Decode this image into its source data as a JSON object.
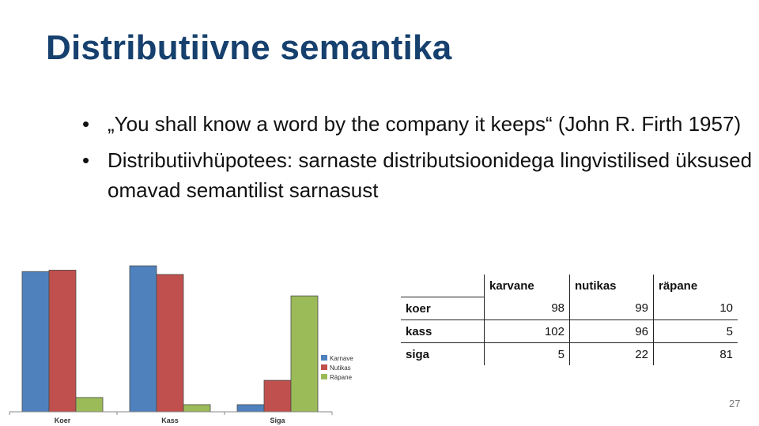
{
  "slide": {
    "title": "Distributiivne semantika",
    "bullets": [
      "„You shall know a word by the company it keeps“ (John R. Firth 1957)",
      "Distributiivhüpotees: sarnaste distributsioonidega lingvistilised üksused omavad semantilist sarnasust"
    ],
    "page_number": "27",
    "bullet_char": "•"
  },
  "table": {
    "headers": [
      "",
      "karvane",
      "nutikas",
      "räpane"
    ],
    "rows": [
      {
        "label": "koer",
        "values": [
          "98",
          "99",
          "10"
        ]
      },
      {
        "label": "kass",
        "values": [
          "102",
          "96",
          "5"
        ]
      },
      {
        "label": "siga",
        "values": [
          "5",
          "22",
          "81"
        ]
      }
    ]
  },
  "chart_data": {
    "type": "bar",
    "categories": [
      "Koer",
      "Kass",
      "Siga"
    ],
    "series": [
      {
        "name": "Karnave",
        "values": [
          98,
          102,
          5
        ],
        "color": "#4f81bd"
      },
      {
        "name": "Nutikas",
        "values": [
          99,
          96,
          22
        ],
        "color": "#c0504d"
      },
      {
        "name": "Räpane",
        "values": [
          10,
          5,
          81
        ],
        "color": "#9bbb59"
      }
    ],
    "title": "",
    "xlabel": "",
    "ylabel": "",
    "ylim": [
      0,
      102
    ],
    "grid": false,
    "legend": "right"
  }
}
